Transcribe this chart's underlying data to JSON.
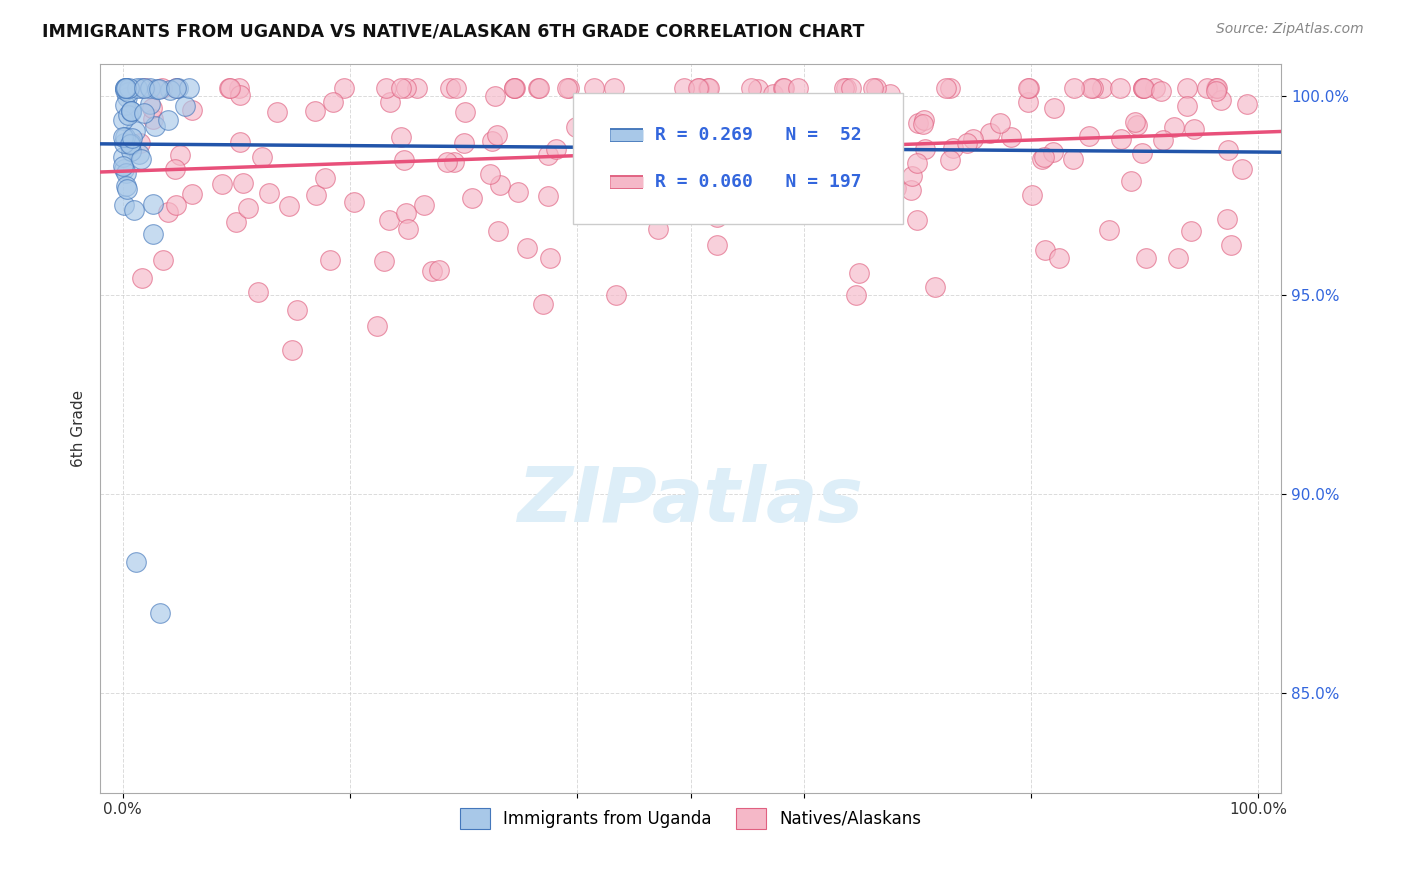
{
  "title": "IMMIGRANTS FROM UGANDA VS NATIVE/ALASKAN 6TH GRADE CORRELATION CHART",
  "source": "Source: ZipAtlas.com",
  "ylabel": "6th Grade",
  "xlim": [
    -0.02,
    1.02
  ],
  "ylim": [
    0.825,
    1.008
  ],
  "r_uganda": 0.269,
  "n_uganda": 52,
  "r_native": 0.06,
  "n_native": 197,
  "blue_fill": "#a8c8e8",
  "blue_edge": "#4477bb",
  "pink_fill": "#f5b8c8",
  "pink_edge": "#e06080",
  "blue_line": "#2255aa",
  "pink_line": "#e8507a",
  "legend_r_color": "#3366dd",
  "background_color": "#ffffff",
  "grid_color": "#cccccc",
  "watermark_color": "#ddeef8",
  "ytick_color": "#3366dd",
  "title_color": "#111111",
  "source_color": "#888888"
}
